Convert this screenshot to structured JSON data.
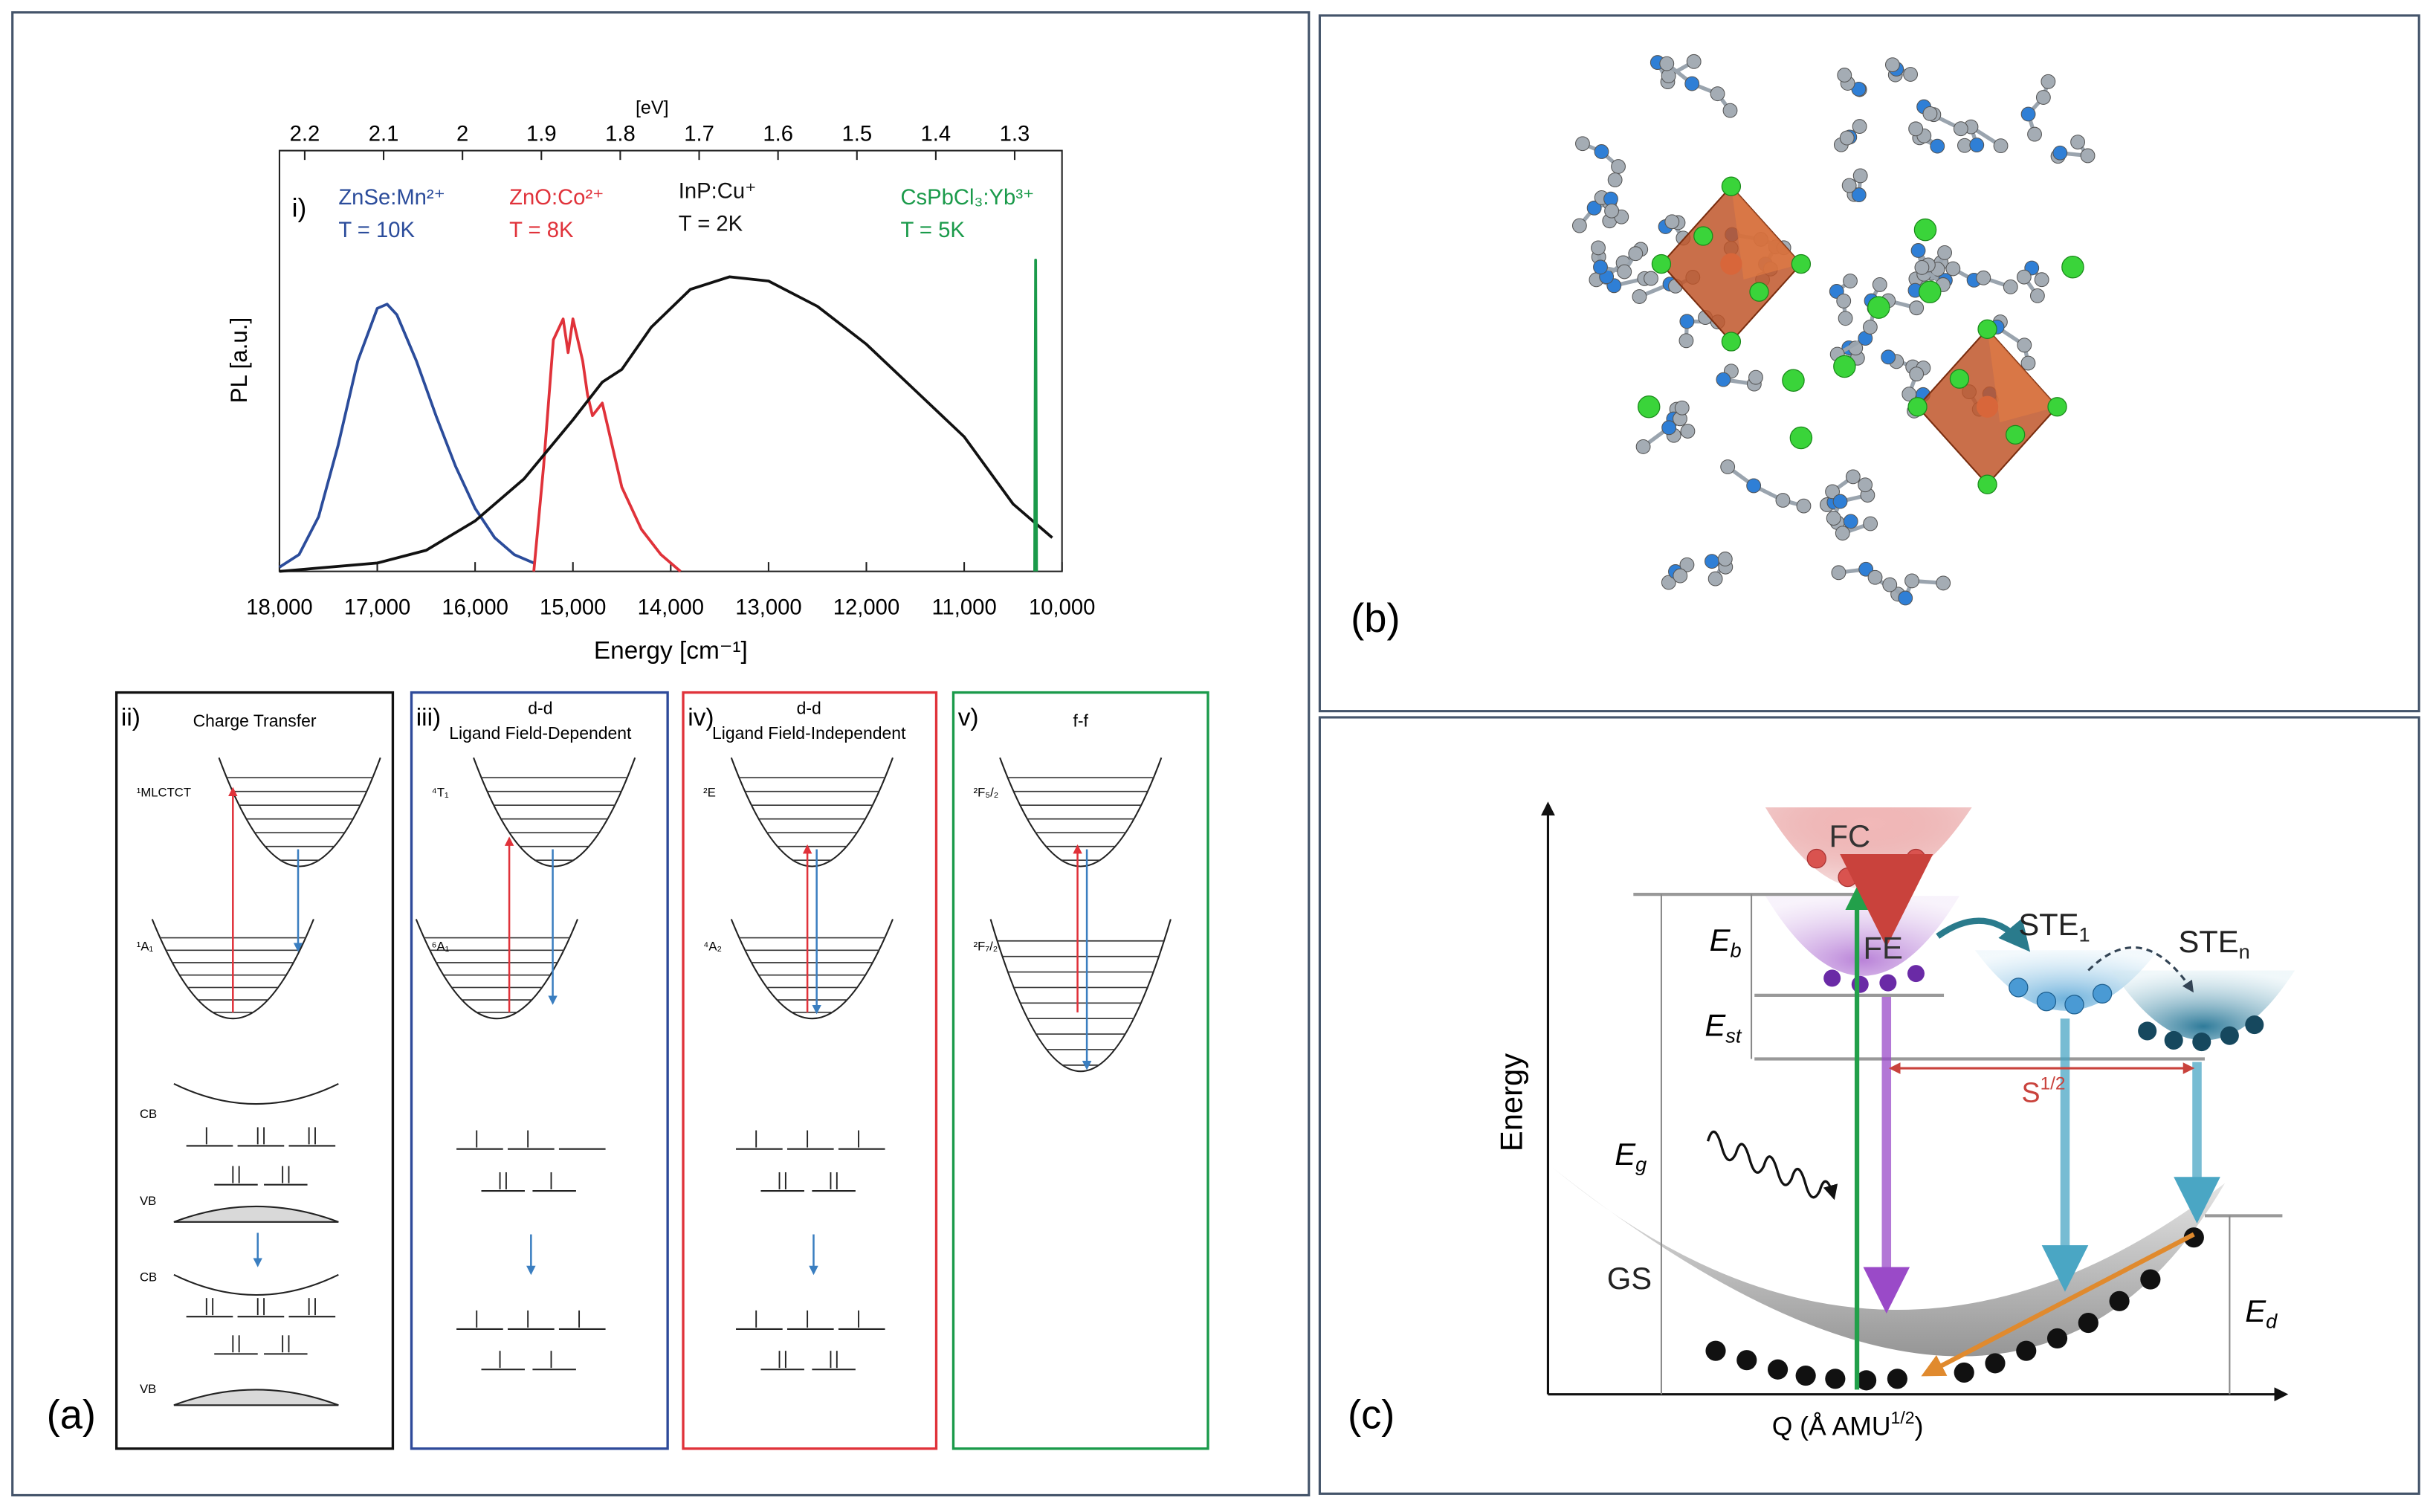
{
  "chart_data": {
    "type": "line",
    "panel_label": "i)",
    "x_label": "Energy [cm⁻¹]",
    "y_label": "PL [a.u.]",
    "x2_label": "[eV]",
    "xlim": [
      18000,
      10000
    ],
    "xticks": [
      {
        "value": 18000,
        "label": "18,000"
      },
      {
        "value": 17000,
        "label": "17,000"
      },
      {
        "value": 16000,
        "label": "16,000"
      },
      {
        "value": 15000,
        "label": "15,000"
      },
      {
        "value": 14000,
        "label": "14,000"
      },
      {
        "value": 13000,
        "label": "13,000"
      },
      {
        "value": 12000,
        "label": "12,000"
      },
      {
        "value": 11000,
        "label": "11,000"
      },
      {
        "value": 10000,
        "label": "10,000"
      }
    ],
    "x2lim": [
      2.232,
      1.24
    ],
    "x2ticks": [
      2.2,
      2.1,
      2.0,
      1.9,
      1.8,
      1.7,
      1.6,
      1.5,
      1.4,
      1.3
    ],
    "ylim": [
      0,
      1
    ],
    "series": [
      {
        "name": "ZnSe:Mn²⁺",
        "temperature": "T = 10K",
        "color": "#2b4c9b",
        "x": [
          18000,
          17800,
          17600,
          17400,
          17200,
          17000,
          16900,
          16800,
          16600,
          16400,
          16200,
          16000,
          15800,
          15600,
          15400
        ],
        "values": [
          0.01,
          0.04,
          0.13,
          0.3,
          0.5,
          0.625,
          0.635,
          0.61,
          0.5,
          0.37,
          0.25,
          0.15,
          0.08,
          0.04,
          0.02
        ]
      },
      {
        "name": "ZnO:Co²⁺",
        "temperature": "T = 8K",
        "color": "#e0323a",
        "x": [
          15400,
          15300,
          15200,
          15100,
          15050,
          15000,
          14900,
          14850,
          14800,
          14700,
          14600,
          14500,
          14300,
          14100,
          13900
        ],
        "values": [
          0.0,
          0.25,
          0.55,
          0.6,
          0.52,
          0.6,
          0.5,
          0.42,
          0.37,
          0.4,
          0.3,
          0.2,
          0.1,
          0.04,
          0.0
        ]
      },
      {
        "name": "InP:Cu⁺",
        "temperature": "T = 2K",
        "color": "#111111",
        "x": [
          18000,
          17000,
          16500,
          16000,
          15500,
          15000,
          14700,
          14500,
          14200,
          13800,
          13400,
          13000,
          12500,
          12000,
          11500,
          11000,
          10500,
          10100
        ],
        "values": [
          0.0,
          0.02,
          0.05,
          0.12,
          0.22,
          0.36,
          0.45,
          0.48,
          0.58,
          0.67,
          0.7,
          0.69,
          0.63,
          0.54,
          0.43,
          0.32,
          0.16,
          0.08
        ]
      },
      {
        "name": "CsPbCl₃:Yb³⁺",
        "temperature": "T = 5K",
        "color": "#1a9a4a",
        "x": [
          10280,
          10270,
          10260
        ],
        "values": [
          0.0,
          0.74,
          0.0
        ]
      }
    ]
  },
  "figure": {
    "panel_labels": [
      "(a)",
      "(b)",
      "(c)"
    ],
    "schemes": [
      {
        "label": "ii)",
        "title": [
          "Charge Transfer"
        ],
        "states": [
          "¹MLCTCT",
          "¹A₁"
        ],
        "bands": [
          "CB",
          "VB",
          "CB",
          "VB"
        ]
      },
      {
        "label": "iii)",
        "title": [
          "d-d",
          "Ligand Field-Dependent"
        ],
        "states": [
          "⁴T₁",
          "⁶A₁"
        ]
      },
      {
        "label": "iv)",
        "title": [
          "d-d",
          "Ligand Field-Independent"
        ],
        "states": [
          "²E",
          "⁴A₂"
        ]
      },
      {
        "label": "v)",
        "title": [
          "f-f"
        ],
        "states": [
          "²F₅/₂",
          "²F₇/₂"
        ]
      }
    ],
    "diagram": {
      "y_axis": "Energy",
      "x_axis": {
        "main": "Q (Å AMU",
        "sup": "1/2",
        "tail": ")"
      },
      "fc": "FC",
      "fe": "FE",
      "gs": "GS",
      "ste1": {
        "main": "STE",
        "sub": "1"
      },
      "sten": {
        "main": "STE",
        "sub": "n"
      },
      "eb": {
        "main": "E",
        "sub": "b"
      },
      "est": {
        "main": "E",
        "sub": "st"
      },
      "eg": {
        "main": "E",
        "sub": "g"
      },
      "ed": {
        "main": "E",
        "sub": "d"
      },
      "s": {
        "main": "S",
        "sup": "1/2"
      }
    }
  }
}
